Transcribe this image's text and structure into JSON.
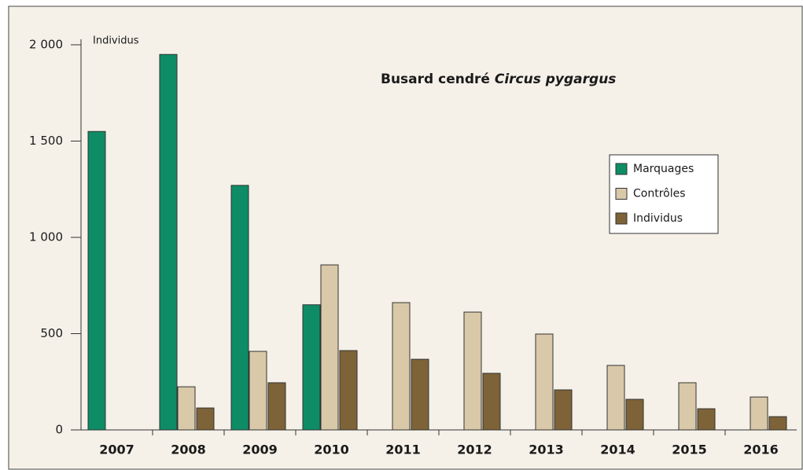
{
  "chart_data": {
    "type": "bar",
    "title": {
      "common": "Busard cendré",
      "latin": "Circus pygargus"
    },
    "y_label": "Individus",
    "categories": [
      "2007",
      "2008",
      "2009",
      "2010",
      "2011",
      "2012",
      "2013",
      "2014",
      "2015",
      "2016"
    ],
    "series": [
      {
        "name": "Marquages",
        "color": "#0e8c66",
        "values": [
          1550,
          1950,
          1270,
          650,
          0,
          0,
          0,
          0,
          0,
          0
        ]
      },
      {
        "name": "Contrôles",
        "color": "#d9c9a9",
        "values": [
          0,
          224,
          408,
          857,
          661,
          612,
          498,
          335,
          245,
          171
        ]
      },
      {
        "name": "Individus",
        "color": "#7d6337",
        "values": [
          0,
          114,
          245,
          412,
          367,
          294,
          208,
          159,
          110,
          69
        ]
      }
    ],
    "ylim": [
      0,
      2000
    ],
    "yticks": [
      0,
      500,
      {
        "value": 1000,
        "label": "1 000"
      },
      {
        "value": 1500,
        "label": "1 500"
      },
      {
        "value": 2000,
        "label": "2 000"
      }
    ],
    "legend": "upper right"
  }
}
